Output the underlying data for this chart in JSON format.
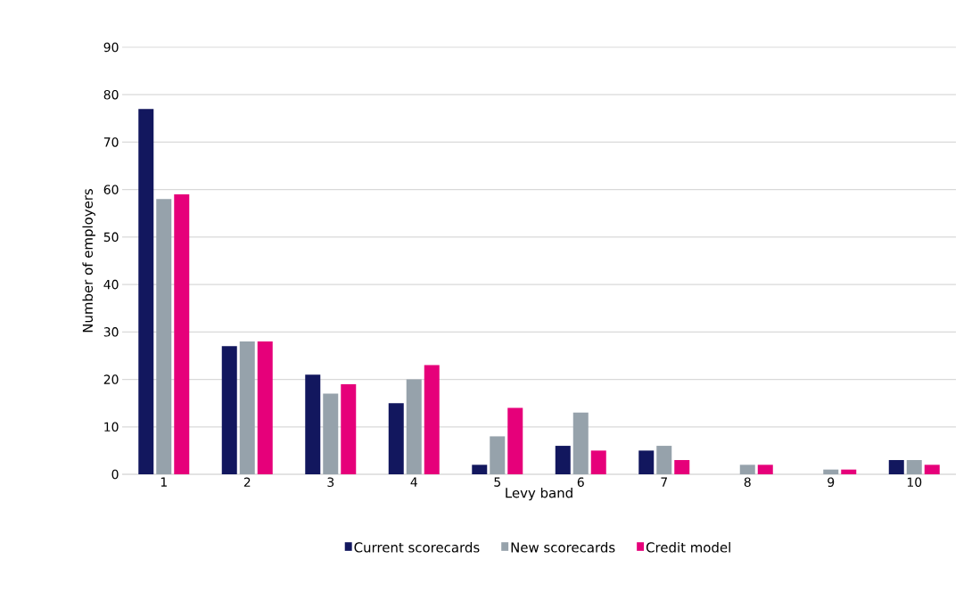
{
  "chart_data": {
    "type": "bar",
    "xlabel": "Levy band",
    "ylabel": "Number of employers",
    "categories": [
      "1",
      "2",
      "3",
      "4",
      "5",
      "6",
      "7",
      "8",
      "9",
      "10"
    ],
    "series": [
      {
        "name": "Current scorecards",
        "color": "#12175e",
        "values": [
          77,
          27,
          21,
          15,
          2,
          6,
          5,
          0,
          0,
          3
        ]
      },
      {
        "name": "New scorecards",
        "color": "#96a2ab",
        "values": [
          58,
          28,
          17,
          20,
          8,
          13,
          6,
          2,
          1,
          3
        ]
      },
      {
        "name": "Credit model",
        "color": "#e6007a",
        "values": [
          59,
          28,
          19,
          23,
          14,
          5,
          3,
          2,
          1,
          2
        ]
      }
    ],
    "ylim": [
      0,
      90
    ],
    "yticks": [
      0,
      10,
      20,
      30,
      40,
      50,
      60,
      70,
      80,
      90
    ],
    "grid": "y",
    "legend": "bottom"
  }
}
